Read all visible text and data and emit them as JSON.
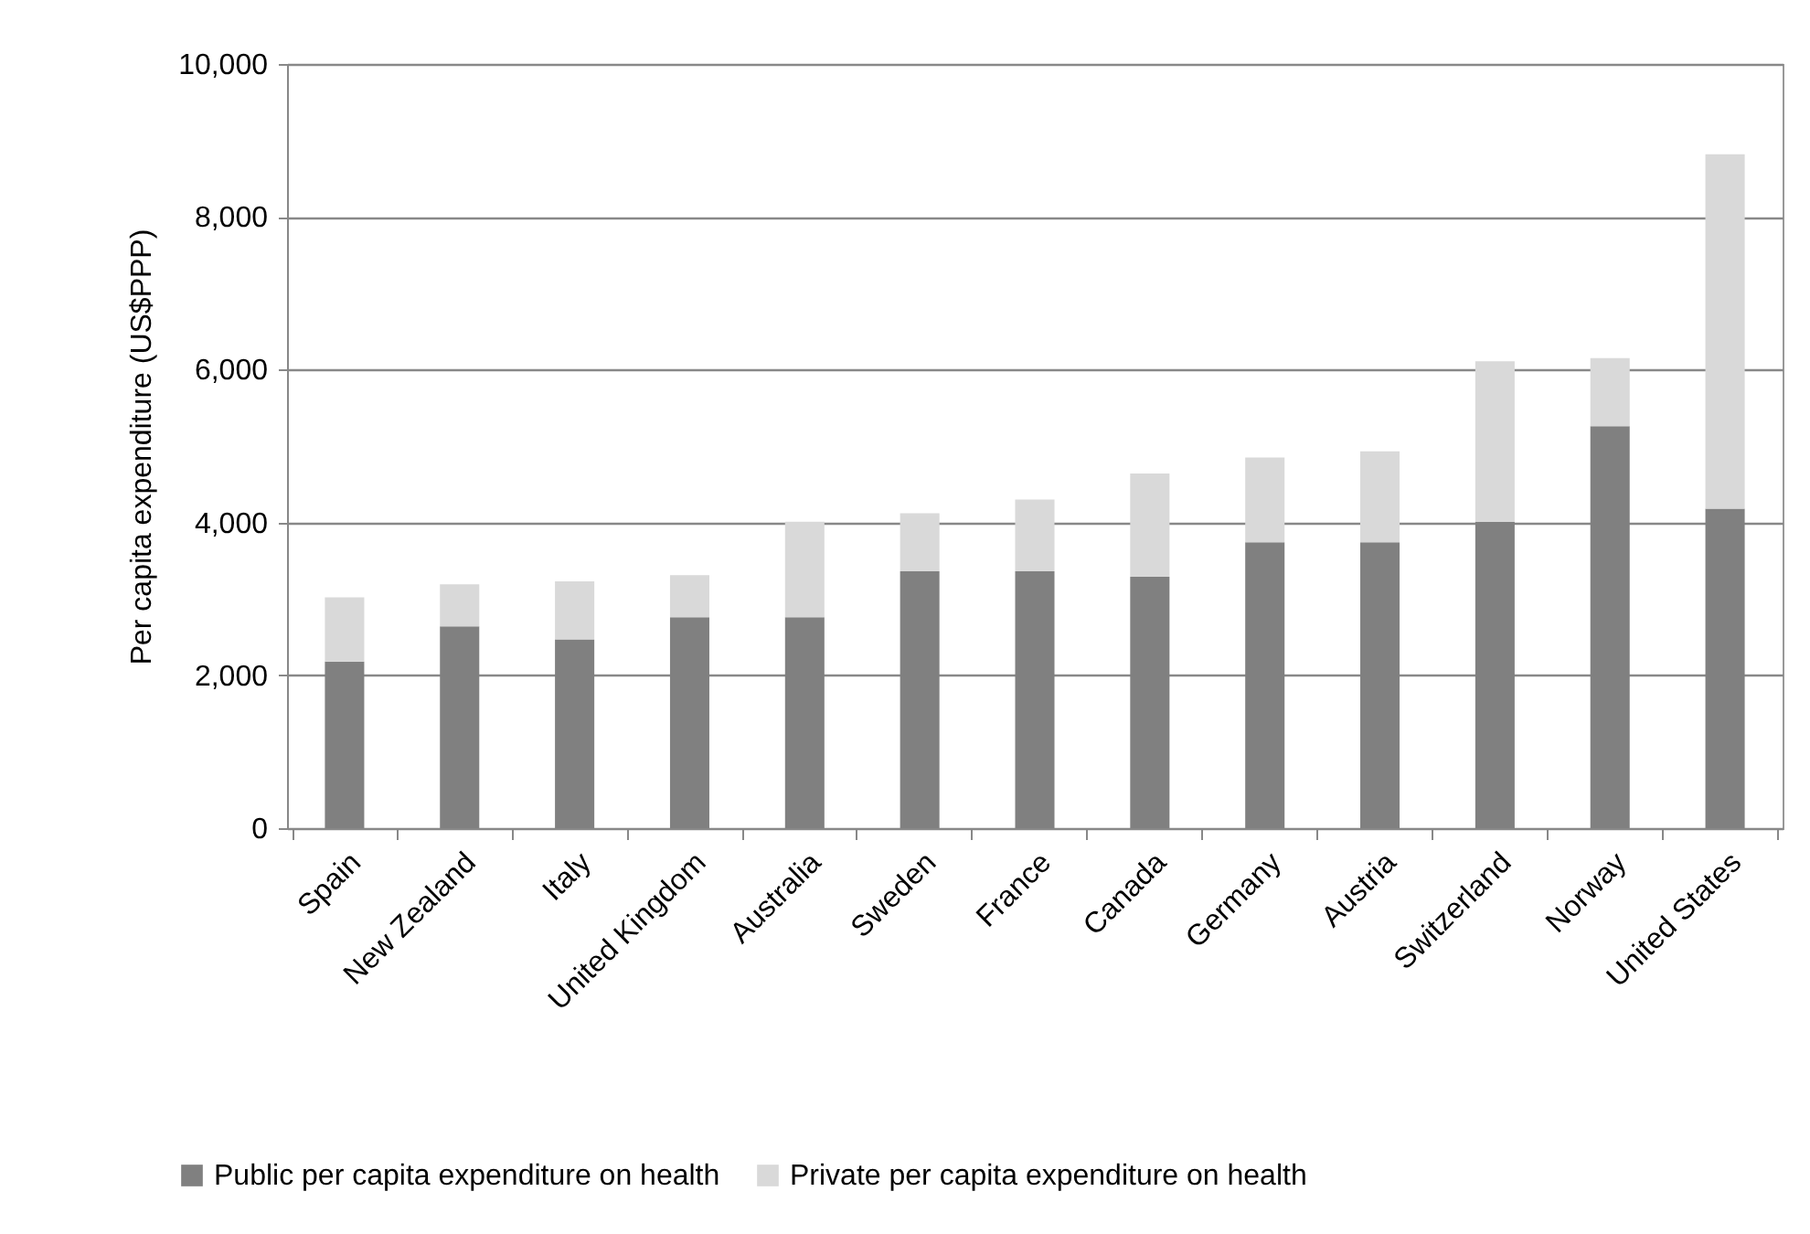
{
  "chart_data": {
    "type": "bar",
    "stacked": true,
    "ylabel": "Per capita expenditure (US$PPP)",
    "categories": [
      "Spain",
      "New Zealand",
      "Italy",
      "United Kingdom",
      "Australia",
      "Sweden",
      "France",
      "Canada",
      "Germany",
      "Austria",
      "Switzerland",
      "Norway",
      "United States"
    ],
    "series": [
      {
        "name": "Public per capita expenditure on health",
        "color": "#808080",
        "values": [
          2180,
          2640,
          2470,
          2760,
          2760,
          3360,
          3360,
          3290,
          3740,
          3740,
          4010,
          5260,
          4180
        ]
      },
      {
        "name": "Private per capita expenditure on health",
        "color": "#d9d9d9",
        "values": [
          840,
          550,
          760,
          550,
          1250,
          760,
          940,
          1350,
          1110,
          1190,
          2100,
          890,
          4640
        ]
      }
    ],
    "ylim": [
      0,
      10000
    ],
    "yticks": [
      0,
      {
        "value": 2000,
        "label": "2,000"
      },
      {
        "value": 4000,
        "label": "4,000"
      },
      {
        "value": 6000,
        "label": "6,000"
      },
      {
        "value": 8000,
        "label": "8,000"
      },
      {
        "value": 10000,
        "label": "10,000"
      }
    ],
    "grid": "y",
    "legend": "bottom"
  }
}
